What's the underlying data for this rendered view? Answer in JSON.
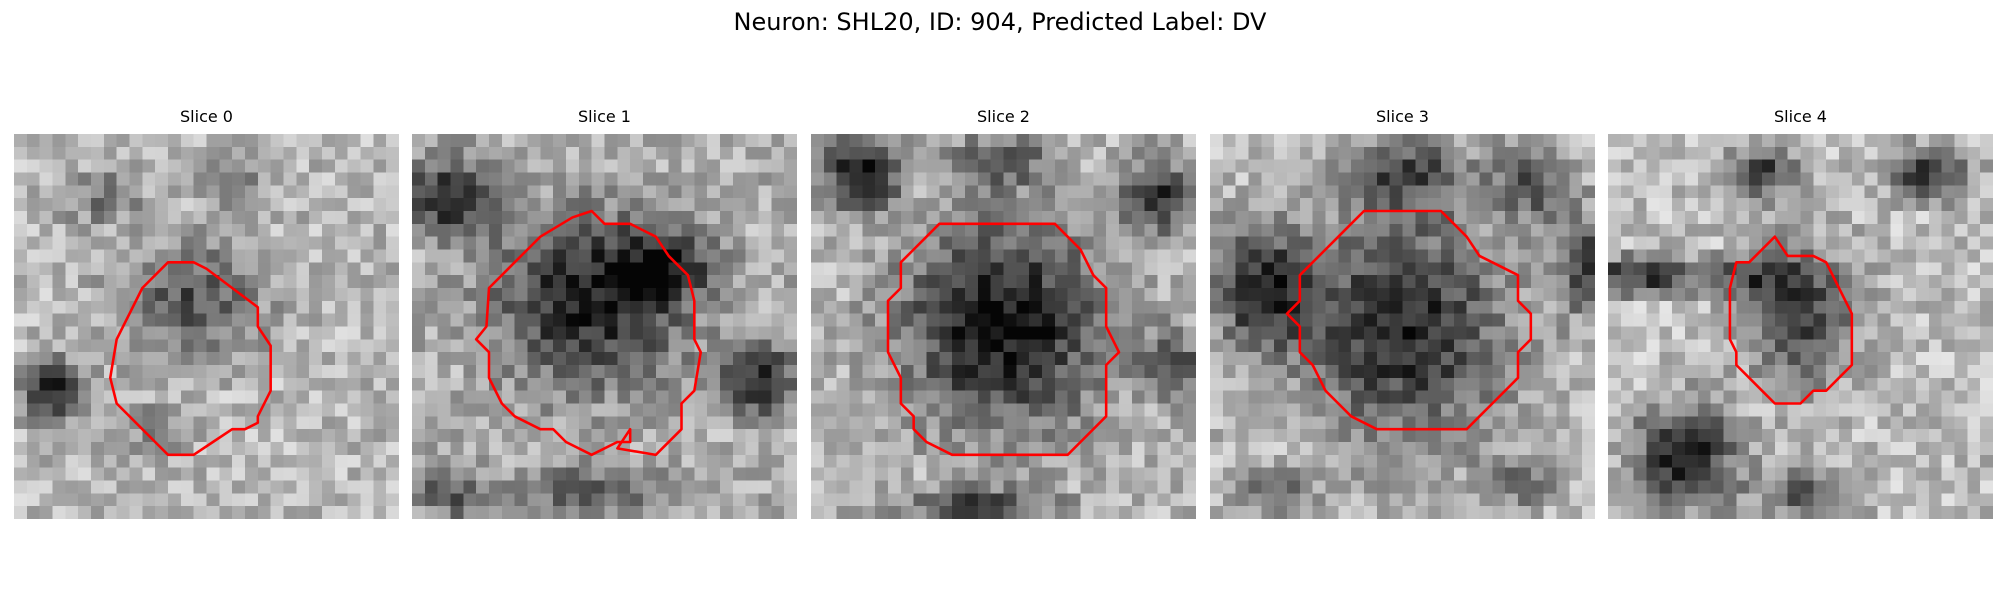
{
  "figure": {
    "title": "Neuron: SHL20, ID: 904, Predicted Label: DV"
  },
  "colors": {
    "roi_outline": "#ff0000",
    "background": "#ffffff",
    "colormap": "gray"
  },
  "panels": [
    {
      "title": "Slice 0"
    },
    {
      "title": "Slice 1"
    },
    {
      "title": "Slice 2"
    },
    {
      "title": "Slice 3"
    },
    {
      "title": "Slice 4"
    }
  ]
}
